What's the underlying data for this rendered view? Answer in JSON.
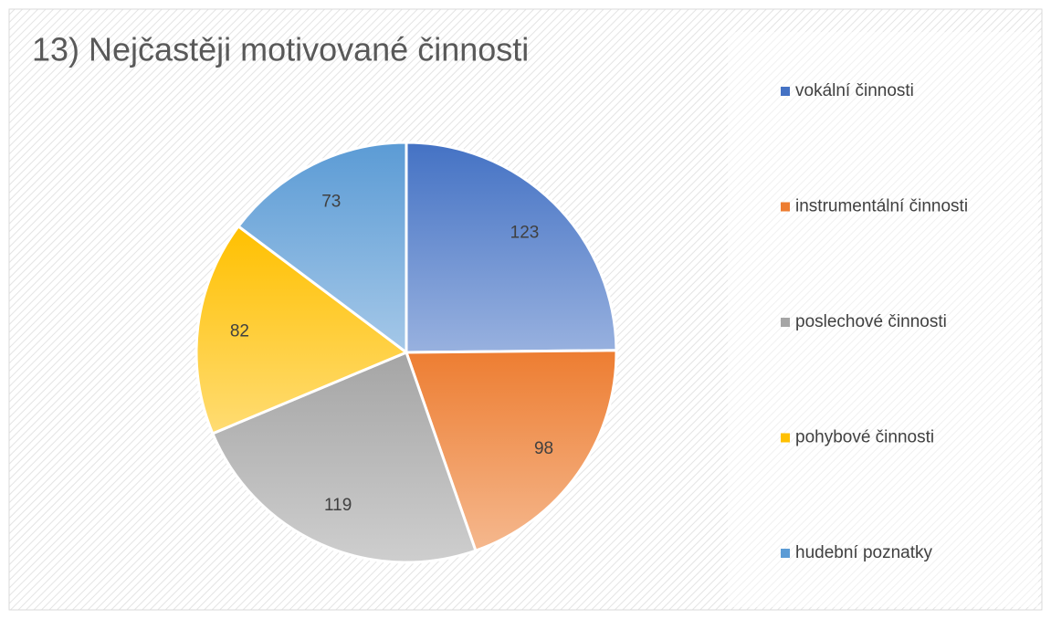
{
  "chart_data": {
    "type": "pie",
    "title": "13) Nejčastěji motivované činnosti",
    "categories": [
      "vokální činnosti",
      "instrumentální činnosti",
      "poslechové činnosti",
      "pohybové činnosti",
      "hudební poznatky"
    ],
    "values": [
      123,
      98,
      119,
      82,
      73
    ],
    "colors": [
      "#4472c4",
      "#ed7d31",
      "#a5a5a5",
      "#ffc000",
      "#5b9bd5"
    ],
    "legend": "right"
  }
}
